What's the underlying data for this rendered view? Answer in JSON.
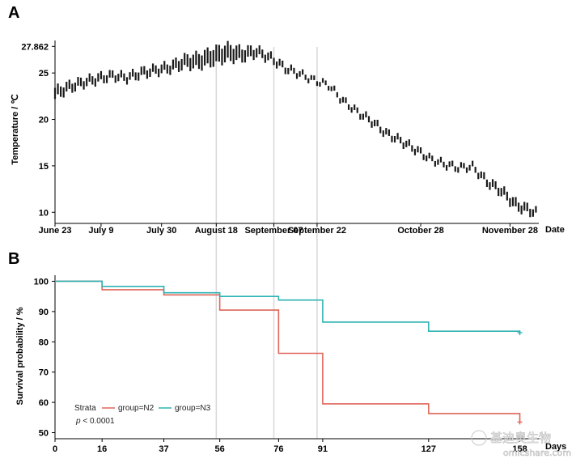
{
  "colors": {
    "temp": "#1a1a1a",
    "N2": "#e0655a",
    "N3": "#2fb3b3",
    "vline": "#d8d8d8",
    "axis": "#000000"
  },
  "watermark": {
    "line1": "基迪奥生物",
    "line2": "omicshare.com"
  },
  "chart_data": [
    {
      "panel": "A",
      "type": "line",
      "ylabel": "Temperature / ℃",
      "xlabel": "Date",
      "ylim": [
        9.5,
        28.5
      ],
      "yticks": [
        10,
        15,
        20,
        25,
        27.862
      ],
      "ytick_labels": [
        "10",
        "15",
        "20",
        "25",
        "27.862"
      ],
      "xticks": [
        "June 23",
        "July 9",
        "July 30",
        "August 18",
        "September 07",
        "September 22",
        "October 28",
        "November 28"
      ],
      "xtick_day": [
        0,
        16,
        37,
        56,
        76,
        91,
        127,
        158
      ],
      "x_end": 168,
      "reference_days": [
        56,
        76,
        91
      ],
      "series": [
        {
          "x": [
            0,
            5,
            10,
            15,
            20,
            25,
            30,
            35,
            40,
            45,
            50,
            55,
            60,
            65,
            70,
            75,
            80,
            85,
            90,
            95,
            100,
            105,
            110,
            115,
            120,
            125,
            130,
            135,
            140,
            145,
            150,
            155,
            160,
            165,
            167
          ],
          "y": [
            22.8,
            23.5,
            24.0,
            24.4,
            24.7,
            24.5,
            25.0,
            25.3,
            25.6,
            26.2,
            26.3,
            26.8,
            27.2,
            27.0,
            27.3,
            26.6,
            25.5,
            24.9,
            24.2,
            23.7,
            22.0,
            20.8,
            19.8,
            18.5,
            17.7,
            16.8,
            15.8,
            15.2,
            14.8,
            14.9,
            13.3,
            12.3,
            10.8,
            10.2,
            10.0
          ],
          "spread": [
            1.2,
            1.0,
            0.9,
            0.9,
            0.8,
            0.8,
            0.9,
            0.9,
            1.0,
            1.3,
            1.6,
            1.8,
            1.8,
            1.4,
            1.0,
            0.8,
            0.7,
            0.6,
            0.5,
            0.5,
            0.6,
            0.6,
            0.7,
            0.7,
            0.7,
            0.7,
            0.6,
            0.6,
            0.6,
            0.6,
            0.8,
            0.9,
            1.0,
            0.9,
            0.7
          ]
        }
      ]
    },
    {
      "panel": "B",
      "type": "line",
      "ylabel": "Survival probability / %",
      "xlabel": "Days",
      "ylim": [
        48,
        102
      ],
      "xlim": [
        0,
        165
      ],
      "yticks": [
        50,
        60,
        70,
        80,
        90,
        100
      ],
      "xticks": [
        0,
        16,
        37,
        56,
        76,
        91,
        127,
        158
      ],
      "legend_title": "Strata",
      "pvalue": "p < 0.0001",
      "series": [
        {
          "name": "group=N2",
          "x": [
            0,
            16,
            37,
            56,
            76,
            91,
            127,
            158
          ],
          "y": [
            100,
            97.2,
            95.5,
            90.5,
            76.2,
            59.5,
            56.3,
            53.5
          ]
        },
        {
          "name": "group=N3",
          "x": [
            0,
            16,
            37,
            56,
            76,
            91,
            127,
            158
          ],
          "y": [
            100,
            98.3,
            96.2,
            95.0,
            93.8,
            86.5,
            83.5,
            83.0
          ]
        }
      ]
    }
  ]
}
